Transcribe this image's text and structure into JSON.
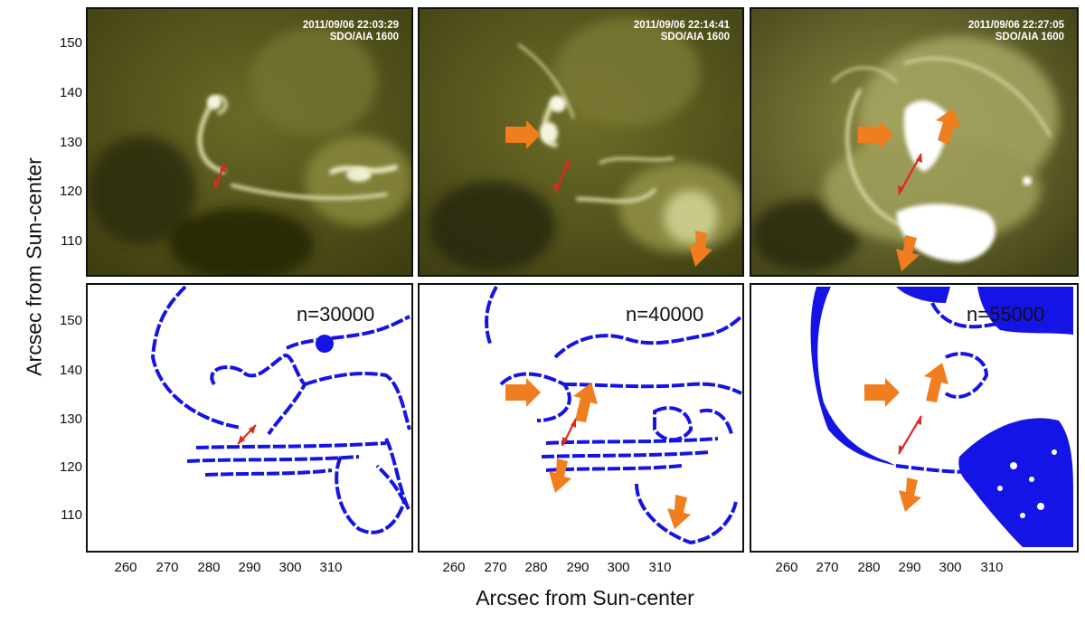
{
  "figure": {
    "top_panels": [
      {
        "timestamp": "2011/09/06 22:03:29",
        "instrument": "SDO/AIA 1600"
      },
      {
        "timestamp": "2011/09/06 22:14:41",
        "instrument": "SDO/AIA 1600"
      },
      {
        "timestamp": "2011/09/06 22:27:05",
        "instrument": "SDO/AIA 1600"
      }
    ],
    "bottom_panels": [
      {
        "label": "n=30000"
      },
      {
        "label": "n=40000"
      },
      {
        "label": "n=55000"
      }
    ],
    "y_axis": {
      "title": "Arcsec from Sun-center",
      "ticks": [
        "150",
        "140",
        "130",
        "120",
        "110"
      ]
    },
    "x_axis": {
      "title": "Arcsec from Sun-center",
      "ticks": [
        "260",
        "270",
        "280",
        "290",
        "300",
        "310"
      ]
    },
    "colors": {
      "arrow_orange": "#f07d1e",
      "double_arrow_red": "#e0281e",
      "contour_blue": "#1414e6",
      "aia_olive": "#5a5a1e"
    }
  }
}
